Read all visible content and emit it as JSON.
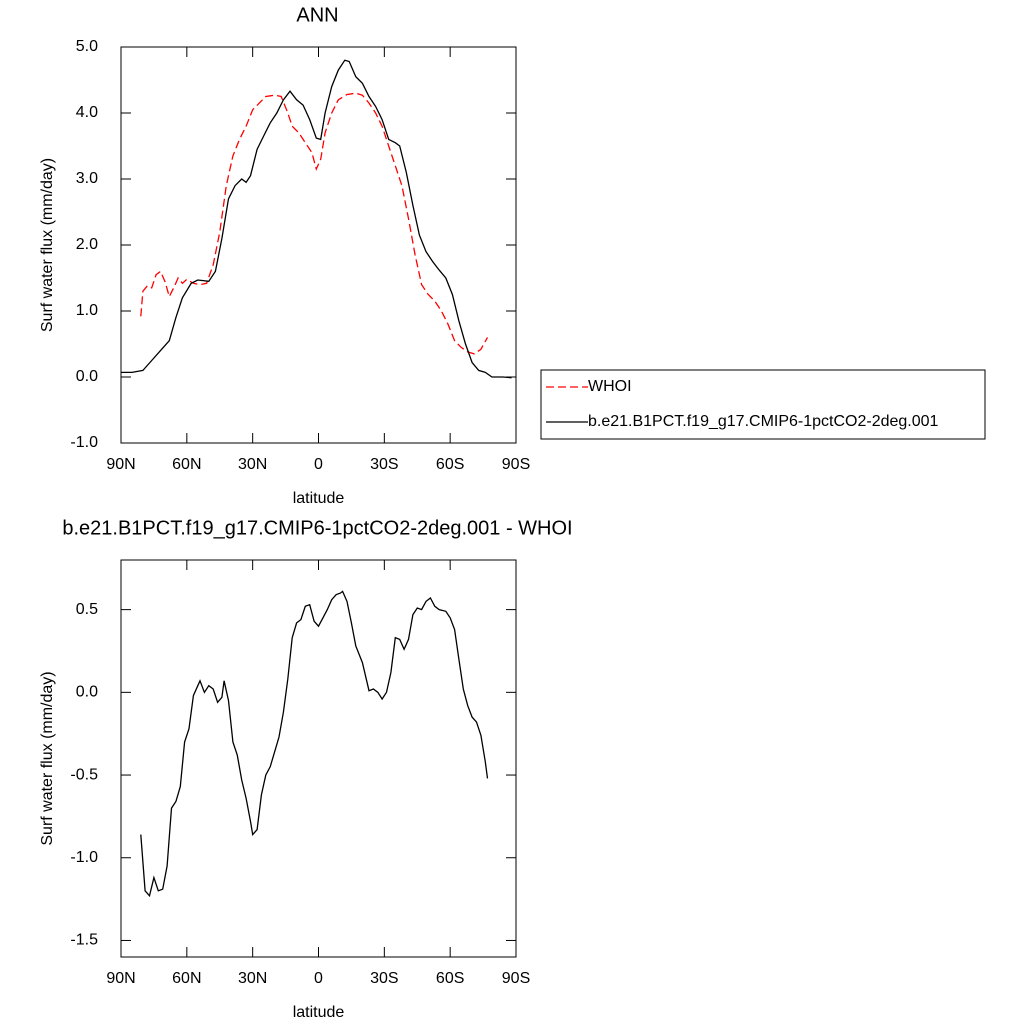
{
  "chart_data": [
    {
      "type": "line",
      "title": "ANN",
      "xlabel": "latitude",
      "ylabel": "Surf water flux (mm/day)",
      "xlim": [
        90,
        -90
      ],
      "ylim": [
        -1.0,
        5.0
      ],
      "xticks": [
        {
          "value": 90,
          "label": "90N"
        },
        {
          "value": 60,
          "label": "60N"
        },
        {
          "value": 30,
          "label": "30N"
        },
        {
          "value": 0,
          "label": "0"
        },
        {
          "value": -30,
          "label": "30S"
        },
        {
          "value": -60,
          "label": "60S"
        },
        {
          "value": -90,
          "label": "90S"
        }
      ],
      "yticks": [
        {
          "value": -1,
          "label": "-1.0"
        },
        {
          "value": 0,
          "label": "0.0"
        },
        {
          "value": 1,
          "label": "1.0"
        },
        {
          "value": 2,
          "label": "2.0"
        },
        {
          "value": 3,
          "label": "3.0"
        },
        {
          "value": 4,
          "label": "4.0"
        },
        {
          "value": 5,
          "label": "5.0"
        }
      ],
      "legend": "right",
      "series": [
        {
          "name": "WHOI",
          "color": "#ff0000",
          "linestyle": "dashed",
          "x": [
            81,
            80,
            78,
            76,
            74,
            72,
            70,
            68,
            66,
            64,
            62,
            60,
            57,
            54,
            51,
            48,
            45,
            42,
            39,
            36,
            33,
            30,
            27,
            24,
            20,
            17,
            14,
            12,
            9,
            6,
            3,
            1,
            -1,
            -3,
            -6,
            -9,
            -13,
            -17,
            -20,
            -23,
            -26,
            -29,
            -32,
            -35,
            -38,
            -41,
            -44,
            -47,
            -50,
            -53,
            -56,
            -59,
            -62,
            -65,
            -68,
            -71,
            -74,
            -77
          ],
          "values": [
            0.92,
            1.3,
            1.38,
            1.35,
            1.55,
            1.6,
            1.45,
            1.22,
            1.35,
            1.5,
            1.42,
            1.48,
            1.42,
            1.4,
            1.42,
            1.7,
            2.2,
            2.9,
            3.35,
            3.6,
            3.8,
            4.05,
            4.15,
            4.25,
            4.27,
            4.25,
            4.0,
            3.8,
            3.7,
            3.55,
            3.4,
            3.15,
            3.3,
            3.7,
            4.0,
            4.2,
            4.28,
            4.3,
            4.27,
            4.15,
            4.0,
            3.8,
            3.5,
            3.2,
            2.9,
            2.4,
            1.85,
            1.4,
            1.25,
            1.15,
            1.0,
            0.8,
            0.55,
            0.45,
            0.38,
            0.35,
            0.42,
            0.6
          ]
        },
        {
          "name": "b.e21.B1PCT.f19_g17.CMIP6-1pctCO2-2deg.001",
          "color": "#000000",
          "linestyle": "solid",
          "x": [
            90,
            85,
            80,
            76,
            72,
            68,
            65,
            62,
            58,
            55,
            50,
            47,
            44,
            41,
            38,
            35,
            33,
            31,
            28,
            25,
            22,
            19,
            16,
            13,
            10,
            7,
            4,
            1,
            -1,
            -3,
            -6,
            -9,
            -12,
            -14,
            -17,
            -20,
            -23,
            -26,
            -29,
            -32,
            -35,
            -37,
            -40,
            -43,
            -46,
            -49,
            -52,
            -55,
            -58,
            -61,
            -64,
            -67,
            -70,
            -73,
            -76,
            -79,
            -84,
            -88
          ],
          "values": [
            0.07,
            0.07,
            0.1,
            0.25,
            0.4,
            0.55,
            0.9,
            1.2,
            1.42,
            1.47,
            1.45,
            1.6,
            2.1,
            2.7,
            2.9,
            3.0,
            2.95,
            3.05,
            3.45,
            3.65,
            3.85,
            4.0,
            4.2,
            4.33,
            4.2,
            4.12,
            3.9,
            3.62,
            3.6,
            4.0,
            4.4,
            4.65,
            4.8,
            4.78,
            4.55,
            4.45,
            4.25,
            4.1,
            3.9,
            3.6,
            3.55,
            3.5,
            3.1,
            2.6,
            2.15,
            1.9,
            1.75,
            1.62,
            1.5,
            1.25,
            0.85,
            0.5,
            0.22,
            0.1,
            0.07,
            0.0,
            0.0,
            -0.01
          ]
        }
      ]
    },
    {
      "type": "line",
      "title": "b.e21.B1PCT.f19_g17.CMIP6-1pctCO2-2deg.001 - WHOI",
      "xlabel": "latitude",
      "ylabel": "Surf water flux (mm/day)",
      "xlim": [
        90,
        -90
      ],
      "ylim": [
        -1.6,
        0.8
      ],
      "xticks": [
        {
          "value": 90,
          "label": "90N"
        },
        {
          "value": 60,
          "label": "60N"
        },
        {
          "value": 30,
          "label": "30N"
        },
        {
          "value": 0,
          "label": "0"
        },
        {
          "value": -30,
          "label": "30S"
        },
        {
          "value": -60,
          "label": "60S"
        },
        {
          "value": -90,
          "label": "90S"
        }
      ],
      "yticks": [
        -1.5,
        {
          "value": -1,
          "label": "-1.0"
        },
        -0.5,
        {
          "value": 0,
          "label": "0.0"
        },
        0.5
      ],
      "series": [
        {
          "color": "#000000",
          "linestyle": "solid",
          "x": [
            81,
            79,
            77,
            75,
            73,
            71,
            69,
            67,
            65,
            63,
            61,
            59,
            57,
            55,
            54,
            52,
            50,
            48,
            46,
            44,
            43,
            41,
            39,
            37,
            35,
            33,
            31,
            30,
            28,
            26,
            24,
            22,
            20,
            18,
            16,
            14,
            12,
            10,
            8,
            6,
            4,
            2,
            0,
            -2,
            -4,
            -6,
            -8,
            -10,
            -11,
            -13,
            -15,
            -17,
            -20,
            -23,
            -25,
            -27,
            -29,
            -31,
            -33,
            -35,
            -37,
            -39,
            -41,
            -43,
            -45,
            -47,
            -49,
            -51,
            -53,
            -55,
            -58,
            -60,
            -62,
            -64,
            -66,
            -68,
            -70,
            -72,
            -74,
            -76,
            -77
          ],
          "values": [
            -0.86,
            -1.2,
            -1.23,
            -1.12,
            -1.2,
            -1.19,
            -1.05,
            -0.7,
            -0.66,
            -0.57,
            -0.3,
            -0.22,
            -0.02,
            0.04,
            0.07,
            0.0,
            0.04,
            0.02,
            -0.06,
            -0.03,
            0.07,
            -0.05,
            -0.3,
            -0.38,
            -0.53,
            -0.64,
            -0.78,
            -0.86,
            -0.83,
            -0.62,
            -0.5,
            -0.45,
            -0.36,
            -0.27,
            -0.12,
            0.08,
            0.33,
            0.42,
            0.44,
            0.52,
            0.53,
            0.43,
            0.4,
            0.45,
            0.5,
            0.56,
            0.59,
            0.6,
            0.61,
            0.55,
            0.42,
            0.28,
            0.18,
            0.01,
            0.02,
            0.0,
            -0.04,
            0.0,
            0.12,
            0.33,
            0.32,
            0.26,
            0.32,
            0.47,
            0.51,
            0.5,
            0.55,
            0.57,
            0.52,
            0.5,
            0.49,
            0.45,
            0.38,
            0.2,
            0.02,
            -0.08,
            -0.15,
            -0.18,
            -0.26,
            -0.42,
            -0.52
          ]
        }
      ]
    }
  ]
}
